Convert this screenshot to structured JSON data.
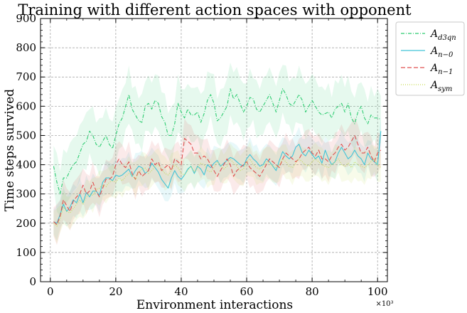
{
  "chart_data": {
    "type": "line",
    "title": "Training with different action spaces with opponent",
    "xlabel": "Environment interactions",
    "ylabel": "Time steps survived",
    "x_multiplier": "×10³",
    "xlim": [
      -3,
      103
    ],
    "ylim": [
      0,
      900
    ],
    "xticks": [
      0,
      20,
      40,
      60,
      80,
      100
    ],
    "yticks": [
      0,
      100,
      200,
      300,
      400,
      500,
      600,
      700,
      800,
      900
    ],
    "grid": true,
    "legend_position": "outside-top-right",
    "x": [
      1,
      2,
      3,
      4,
      5,
      6,
      7,
      8,
      9,
      10,
      11,
      12,
      13,
      14,
      15,
      16,
      17,
      18,
      19,
      20,
      21,
      22,
      23,
      24,
      25,
      26,
      27,
      28,
      29,
      30,
      31,
      32,
      33,
      34,
      35,
      36,
      37,
      38,
      39,
      40,
      41,
      42,
      43,
      44,
      45,
      46,
      47,
      48,
      49,
      50,
      51,
      52,
      53,
      54,
      55,
      56,
      57,
      58,
      59,
      60,
      61,
      62,
      63,
      64,
      65,
      66,
      67,
      68,
      69,
      70,
      71,
      72,
      73,
      74,
      75,
      76,
      77,
      78,
      79,
      80,
      81,
      82,
      83,
      84,
      85,
      86,
      87,
      88,
      89,
      90,
      91,
      92,
      93,
      94,
      95,
      96,
      97,
      98,
      99,
      100,
      101
    ],
    "series": [
      {
        "name": "A_d3qn",
        "color": "#2ecc71",
        "dash": "5,2,1,2",
        "values": [
          395,
          340,
          300,
          355,
          355,
          380,
          400,
          410,
          440,
          470,
          480,
          515,
          500,
          470,
          460,
          480,
          500,
          470,
          455,
          500,
          540,
          560,
          600,
          640,
          590,
          570,
          550,
          545,
          600,
          610,
          590,
          620,
          610,
          565,
          545,
          500,
          500,
          540,
          610,
          580,
          560,
          590,
          570,
          570,
          580,
          545,
          575,
          620,
          640,
          610,
          550,
          560,
          580,
          600,
          660,
          625,
          640,
          610,
          580,
          600,
          630,
          625,
          590,
          580,
          600,
          620,
          640,
          610,
          580,
          620,
          660,
          640,
          610,
          600,
          620,
          640,
          620,
          580,
          600,
          620,
          600,
          580,
          570,
          575,
          580,
          560,
          590,
          600,
          610,
          580,
          610,
          560,
          540,
          580,
          600,
          560,
          540,
          570,
          560,
          560,
          555
        ],
        "band": 100
      },
      {
        "name": "A_n−0",
        "color": "#40c4d8",
        "dash": "",
        "values": [
          205,
          200,
          230,
          265,
          240,
          255,
          280,
          270,
          300,
          270,
          305,
          290,
          310,
          310,
          295,
          340,
          355,
          355,
          345,
          365,
          360,
          365,
          375,
          385,
          360,
          380,
          395,
          390,
          370,
          380,
          405,
          390,
          375,
          350,
          335,
          320,
          355,
          380,
          360,
          350,
          365,
          385,
          395,
          370,
          395,
          385,
          365,
          400,
          390,
          405,
          415,
          395,
          405,
          415,
          425,
          420,
          410,
          400,
          395,
          420,
          435,
          420,
          410,
          395,
          400,
          420,
          410,
          395,
          380,
          415,
          445,
          430,
          420,
          430,
          460,
          470,
          440,
          430,
          450,
          435,
          420,
          430,
          405,
          450,
          420,
          400,
          410,
          440,
          460,
          440,
          420,
          430,
          450,
          430,
          420,
          400,
          440,
          420,
          410,
          400,
          515
        ],
        "band": 60
      },
      {
        "name": "A_n−1",
        "color": "#e05050",
        "dash": "6,3",
        "values": [
          205,
          195,
          225,
          280,
          260,
          240,
          275,
          290,
          300,
          330,
          300,
          310,
          340,
          310,
          290,
          320,
          350,
          350,
          360,
          400,
          420,
          400,
          390,
          410,
          370,
          350,
          380,
          360,
          370,
          380,
          420,
          400,
          410,
          380,
          390,
          400,
          380,
          420,
          410,
          400,
          490,
          480,
          470,
          440,
          440,
          420,
          430,
          420,
          400,
          380,
          360,
          380,
          400,
          420,
          400,
          360,
          380,
          390,
          400,
          410,
          390,
          380,
          370,
          360,
          380,
          400,
          420,
          410,
          400,
          390,
          420,
          440,
          430,
          420,
          410,
          420,
          440,
          450,
          460,
          440,
          430,
          450,
          420,
          420,
          410,
          430,
          440,
          460,
          470,
          450,
          460,
          480,
          500,
          470,
          440,
          440,
          460,
          430,
          410,
          440,
          450
        ],
        "band": 70
      },
      {
        "name": "A_sym",
        "color": "#c8dc50",
        "dash": "1,2",
        "values": [
          200,
          190,
          215,
          255,
          240,
          235,
          250,
          265,
          280,
          265,
          290,
          300,
          295,
          315,
          320,
          330,
          325,
          340,
          345,
          340,
          355,
          345,
          360,
          370,
          365,
          350,
          375,
          385,
          390,
          370,
          380,
          395,
          400,
          385,
          370,
          365,
          380,
          400,
          390,
          370,
          365,
          380,
          395,
          375,
          390,
          405,
          400,
          380,
          375,
          390,
          410,
          400,
          385,
          395,
          420,
          405,
          395,
          380,
          385,
          410,
          420,
          400,
          390,
          385,
          395,
          410,
          405,
          395,
          390,
          400,
          420,
          410,
          395,
          390,
          405,
          420,
          410,
          400,
          395,
          410,
          420,
          410,
          400,
          395,
          390,
          400,
          410,
          420,
          400,
          395,
          405,
          390,
          410,
          400,
          395,
          390,
          400,
          410,
          420,
          400,
          390
        ],
        "band": 60
      }
    ]
  }
}
